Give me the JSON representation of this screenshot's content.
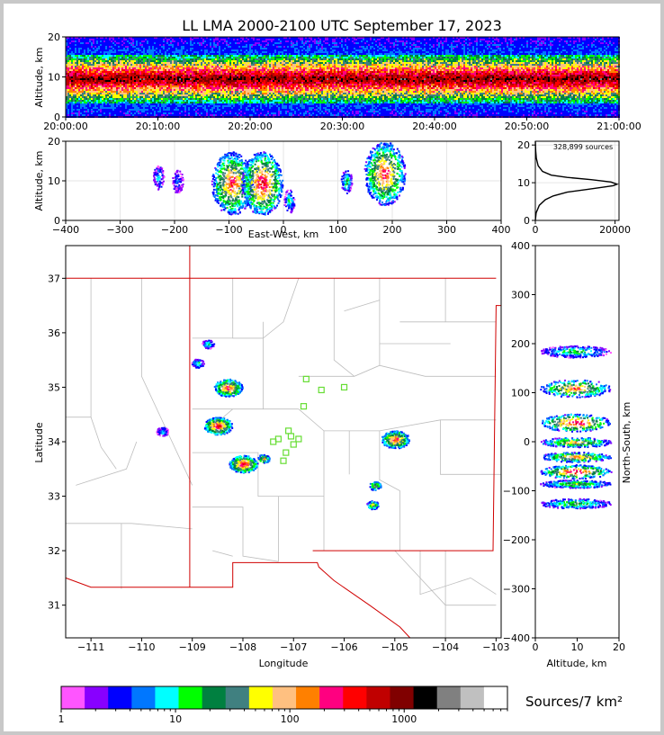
{
  "title": "LL LMA 2000-2100 UTC September 17, 2023",
  "colors": {
    "bg": "#c8c8c8",
    "state_border": "#d00000",
    "county_border": "#bdbdbd",
    "station_marker": "#66dd33"
  },
  "chart_data": [
    {
      "id": "time-height",
      "type": "heatmap",
      "ylabel": "Altitude, km",
      "ylim": [
        0,
        20
      ],
      "yticks": [
        "0",
        "10",
        "20"
      ],
      "xticks": [
        "20:00:00",
        "20:10:00",
        "20:20:00",
        "20:30:00",
        "20:40:00",
        "20:50:00",
        "21:00:00"
      ]
    },
    {
      "id": "ew-altitude",
      "type": "heatmap",
      "xlabel": "East-West, km",
      "ylabel": "Altitude, km",
      "xlim": [
        -400,
        400
      ],
      "ylim": [
        0,
        20
      ],
      "xticks": [
        "−400",
        "−300",
        "−200",
        "−100",
        "0",
        "100",
        "200",
        "300",
        "400"
      ],
      "yticks": [
        "0",
        "10",
        "20"
      ],
      "cells": [
        {
          "x": -95,
          "y": 9.5,
          "level": 12
        },
        {
          "x": -40,
          "y": 9.5,
          "level": 13
        },
        {
          "x": -230,
          "y": 11,
          "level": 4
        },
        {
          "x": -195,
          "y": 10,
          "level": 3
        },
        {
          "x": 10,
          "y": 5,
          "level": 5
        },
        {
          "x": 115,
          "y": 10,
          "level": 6
        },
        {
          "x": 185,
          "y": 12,
          "level": 12
        }
      ]
    },
    {
      "id": "altitude-histogram",
      "type": "line",
      "annotation": "328,899 sources",
      "xlim": [
        0,
        21000
      ],
      "ylim": [
        0,
        21
      ],
      "xticks": [
        "0",
        "20000"
      ],
      "yticks": [
        "0",
        "10",
        "20"
      ],
      "x": [
        0,
        200,
        1000,
        2500,
        4500,
        8000,
        13000,
        17000,
        19500,
        20500,
        19000,
        14000,
        8000,
        4000,
        1800,
        700,
        250,
        100,
        0
      ],
      "y": [
        0,
        2,
        4,
        5.5,
        6.5,
        7.5,
        8.2,
        8.8,
        9.2,
        9.6,
        10.2,
        10.8,
        11.4,
        12.0,
        13.0,
        14.5,
        16.5,
        18.5,
        21
      ]
    },
    {
      "id": "plan-view",
      "type": "heatmap",
      "xlabel": "Longitude",
      "ylabel": "Latitude",
      "xlim": [
        -111.5,
        -102.9
      ],
      "ylim": [
        30.4,
        37.6
      ],
      "xticks": [
        "−111",
        "−110",
        "−109",
        "−108",
        "−107",
        "−106",
        "−105",
        "−104",
        "−103"
      ],
      "yticks": [
        "31",
        "32",
        "33",
        "34",
        "35",
        "36",
        "37"
      ],
      "cells": [
        {
          "x": -108.3,
          "y": 35.0,
          "level": 12
        },
        {
          "x": -108.5,
          "y": 34.3,
          "level": 13
        },
        {
          "x": -108.0,
          "y": 33.6,
          "level": 13
        },
        {
          "x": -107.6,
          "y": 33.7,
          "level": 10
        },
        {
          "x": -105.0,
          "y": 34.05,
          "level": 12
        },
        {
          "x": -105.4,
          "y": 33.2,
          "level": 9
        },
        {
          "x": -105.45,
          "y": 32.85,
          "level": 9
        },
        {
          "x": -108.7,
          "y": 35.8,
          "level": 5
        },
        {
          "x": -108.9,
          "y": 35.45,
          "level": 5
        },
        {
          "x": -109.6,
          "y": 34.2,
          "level": 4
        }
      ],
      "stations": [
        {
          "lon": -107.3,
          "lat": 34.05
        },
        {
          "lon": -107.1,
          "lat": 34.2
        },
        {
          "lon": -107.0,
          "lat": 33.95
        },
        {
          "lon": -106.9,
          "lat": 34.05
        },
        {
          "lon": -107.15,
          "lat": 33.8
        },
        {
          "lon": -107.2,
          "lat": 33.65
        },
        {
          "lon": -107.05,
          "lat": 34.1
        },
        {
          "lon": -107.4,
          "lat": 34.0
        },
        {
          "lon": -106.8,
          "lat": 34.65
        },
        {
          "lon": -106.45,
          "lat": 34.95
        },
        {
          "lon": -106.0,
          "lat": 35.0
        },
        {
          "lon": -106.75,
          "lat": 35.15
        }
      ]
    },
    {
      "id": "altitude-ns",
      "type": "heatmap",
      "xlabel": "Altitude, km",
      "ylabel": "North-South, km",
      "xlim": [
        0,
        20
      ],
      "ylim": [
        -400,
        400
      ],
      "xticks": [
        "0",
        "10",
        "20"
      ],
      "yticks": [
        "−400",
        "−300",
        "−200",
        "−100",
        "0",
        "100",
        "200",
        "300",
        "400"
      ]
    }
  ],
  "colorbar": {
    "label": "Sources/7 km²",
    "tick_labels": [
      "1",
      "10",
      "100",
      "1000"
    ],
    "colors": [
      "#ff55ff",
      "#8800ff",
      "#0000ff",
      "#0077ff",
      "#00ffff",
      "#00ff00",
      "#008040",
      "#408080",
      "#ffff00",
      "#ffc080",
      "#ff8000",
      "#ff0080",
      "#ff0000",
      "#c00000",
      "#800000",
      "#000000",
      "#808080",
      "#c0c0c0",
      "#ffffff"
    ]
  }
}
